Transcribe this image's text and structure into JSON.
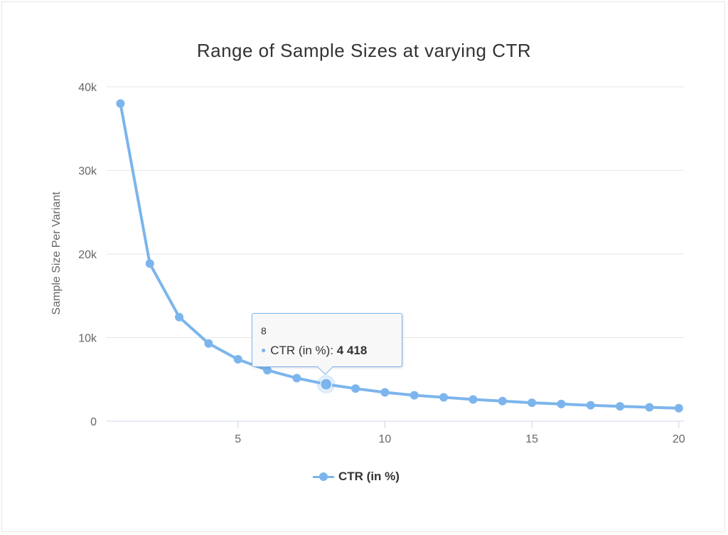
{
  "chart_data": {
    "type": "line",
    "title": "Range of Sample Sizes at varying CTR",
    "ylabel": "Sample Size Per Variant",
    "xlabel": "",
    "x": [
      1,
      2,
      3,
      4,
      5,
      6,
      7,
      8,
      9,
      10,
      11,
      12,
      13,
      14,
      15,
      16,
      17,
      18,
      19,
      20
    ],
    "series": [
      {
        "name": "CTR (in %)",
        "color": "#7cb5ec",
        "values": [
          38000,
          18850,
          12450,
          9300,
          7400,
          6100,
          5150,
          4418,
          3900,
          3450,
          3100,
          2850,
          2600,
          2400,
          2200,
          2050,
          1900,
          1780,
          1660,
          1550
        ]
      }
    ],
    "ylim": [
      0,
      40000
    ],
    "xlim": [
      1,
      20
    ],
    "y_ticks": [
      "0",
      "10k",
      "20k",
      "30k",
      "40k"
    ],
    "y_tick_values": [
      0,
      10000,
      20000,
      30000,
      40000
    ],
    "x_ticks": [
      "5",
      "10",
      "15",
      "20"
    ],
    "x_tick_values": [
      5,
      10,
      15,
      20
    ],
    "grid": true,
    "legend": "bottom-center",
    "tooltip": {
      "header": "8",
      "series_label": "CTR (in %):",
      "value": "4 418"
    }
  }
}
